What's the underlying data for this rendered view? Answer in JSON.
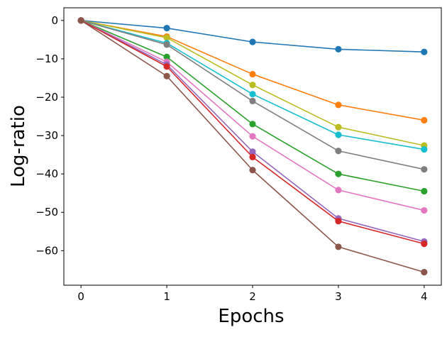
{
  "chart_data": {
    "type": "line",
    "title": "",
    "xlabel": "Epochs",
    "ylabel": "Log-ratio",
    "x": [
      0,
      1,
      2,
      3,
      4
    ],
    "xlim": [
      -0.2,
      4.2
    ],
    "ylim": [
      -69,
      3.3
    ],
    "xticks": [
      0,
      1,
      2,
      3,
      4
    ],
    "yticks": [
      0,
      -10,
      -20,
      -30,
      -40,
      -50,
      -60
    ],
    "xtick_labels": [
      "0",
      "1",
      "2",
      "3",
      "4"
    ],
    "ytick_labels": [
      "0",
      "−10",
      "−20",
      "−30",
      "−40",
      "−50",
      "−60"
    ],
    "grid": false,
    "legend": "none",
    "series": [
      {
        "name": "series-1",
        "color": "#1f77b4",
        "values": [
          0,
          -2.0,
          -5.6,
          -7.5,
          -8.2
        ]
      },
      {
        "name": "series-2",
        "color": "#ff7f0e",
        "values": [
          0,
          -4.2,
          -14.0,
          -22.0,
          -26.0
        ]
      },
      {
        "name": "series-3",
        "color": "#bcbd22",
        "values": [
          0,
          -4.5,
          -16.8,
          -27.8,
          -32.6
        ]
      },
      {
        "name": "series-4",
        "color": "#17becf",
        "values": [
          0,
          -5.9,
          -19.2,
          -29.8,
          -33.6
        ]
      },
      {
        "name": "series-5",
        "color": "#7f7f7f",
        "values": [
          0,
          -6.3,
          -21.0,
          -34.0,
          -38.8
        ]
      },
      {
        "name": "series-6",
        "color": "#2ca02c",
        "values": [
          0,
          -9.5,
          -27.0,
          -40.0,
          -44.5
        ]
      },
      {
        "name": "series-7",
        "color": "#e377c2",
        "values": [
          0,
          -10.8,
          -30.2,
          -44.2,
          -49.5
        ]
      },
      {
        "name": "series-8",
        "color": "#9467bd",
        "values": [
          0,
          -11.5,
          -34.2,
          -51.6,
          -57.6
        ]
      },
      {
        "name": "series-9",
        "color": "#d62728",
        "values": [
          0,
          -12.0,
          -35.6,
          -52.3,
          -58.2
        ]
      },
      {
        "name": "series-10",
        "color": "#8c564b",
        "values": [
          0,
          -14.5,
          -39.0,
          -59.0,
          -65.6
        ]
      }
    ]
  }
}
